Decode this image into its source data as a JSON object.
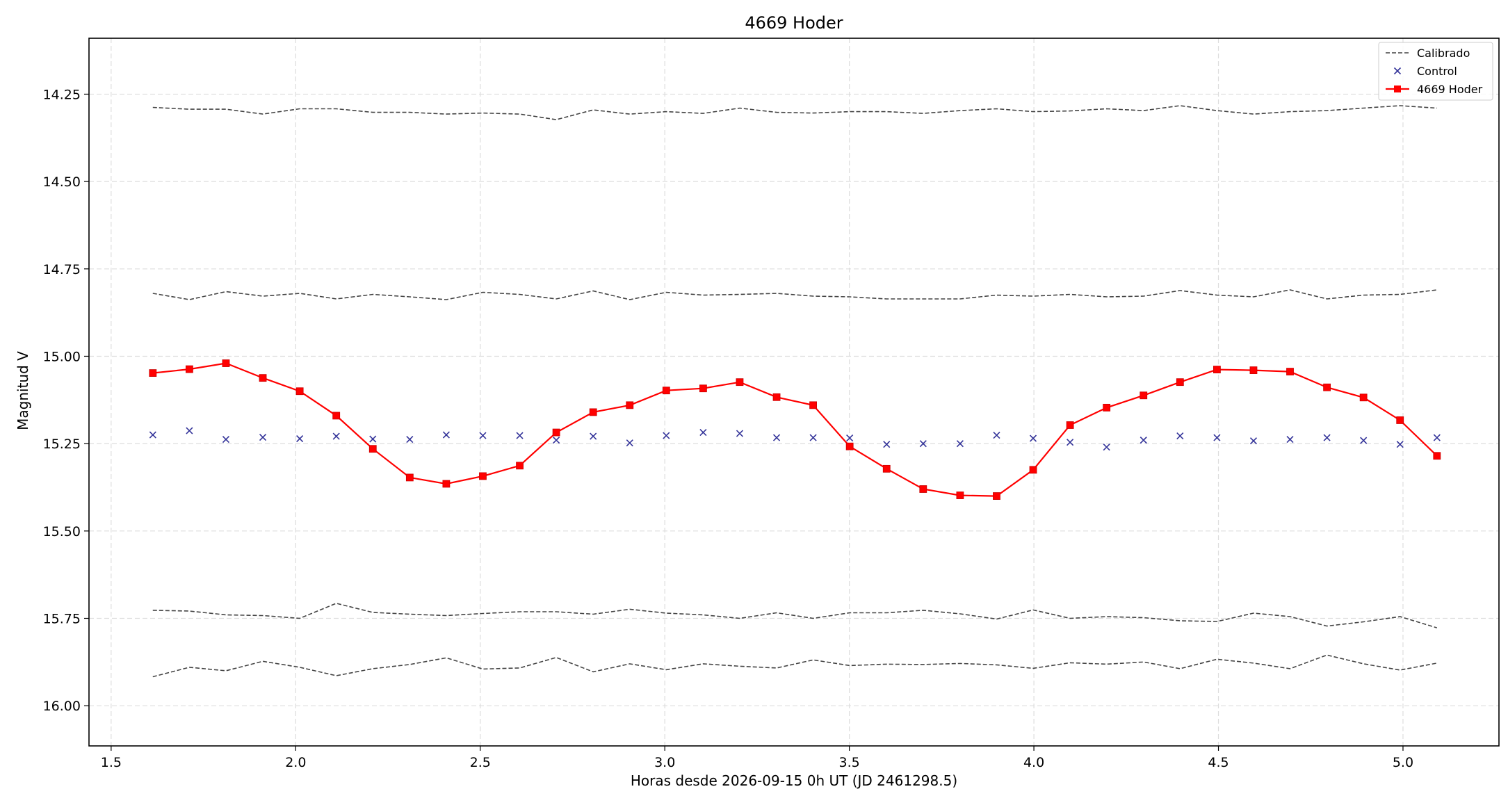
{
  "chart_data": {
    "type": "line",
    "title": "4669 Hoder",
    "xlabel": "Horas desde 2026-09-15 0h UT (JD 2461298.5)",
    "ylabel": "Magnitud V",
    "xlim": [
      1.44,
      5.26
    ],
    "ylim": [
      16.115,
      14.09
    ],
    "y_inverted": true,
    "grid": true,
    "legend_position": "top-right",
    "x_ticks": [
      1.5,
      2.0,
      2.5,
      3.0,
      3.5,
      4.0,
      4.5,
      5.0
    ],
    "x_tick_labels": [
      "1.5",
      "2.0",
      "2.5",
      "3.0",
      "3.5",
      "4.0",
      "4.5",
      "5.0"
    ],
    "y_ticks": [
      14.25,
      14.5,
      14.75,
      15.0,
      15.25,
      15.5,
      15.75,
      16.0
    ],
    "y_tick_labels": [
      "14.25",
      "14.50",
      "14.75",
      "15.00",
      "15.25",
      "15.50",
      "15.75",
      "16.00"
    ],
    "x": [
      1.613,
      1.712,
      1.811,
      1.911,
      2.011,
      2.11,
      2.209,
      2.309,
      2.408,
      2.507,
      2.607,
      2.706,
      2.806,
      2.905,
      3.004,
      3.104,
      3.203,
      3.303,
      3.402,
      3.501,
      3.601,
      3.7,
      3.8,
      3.899,
      3.998,
      4.098,
      4.197,
      4.297,
      4.396,
      4.496,
      4.595,
      4.694,
      4.794,
      4.893,
      4.992,
      5.092
    ],
    "series": [
      {
        "name": "Calibrado",
        "style": "dashed",
        "color": "#444444",
        "lines": [
          [
            14.288,
            14.293,
            14.293,
            14.307,
            14.292,
            14.292,
            14.302,
            14.302,
            14.307,
            14.304,
            14.307,
            14.323,
            14.295,
            14.307,
            14.3,
            14.305,
            14.29,
            14.302,
            14.304,
            14.3,
            14.3,
            14.305,
            14.297,
            14.292,
            14.3,
            14.298,
            14.292,
            14.297,
            14.283,
            14.297,
            14.307,
            14.3,
            14.297,
            14.29,
            14.283,
            14.29
          ],
          [
            14.82,
            14.838,
            14.815,
            14.828,
            14.82,
            14.836,
            14.823,
            14.83,
            14.838,
            14.817,
            14.823,
            14.836,
            14.813,
            14.838,
            14.817,
            14.825,
            14.823,
            14.82,
            14.828,
            14.83,
            14.836,
            14.836,
            14.836,
            14.825,
            14.828,
            14.823,
            14.83,
            14.828,
            14.812,
            14.825,
            14.83,
            14.81,
            14.836,
            14.825,
            14.823,
            14.81
          ],
          [
            15.727,
            15.729,
            15.74,
            15.742,
            15.75,
            15.707,
            15.733,
            15.738,
            15.742,
            15.736,
            15.731,
            15.731,
            15.738,
            15.724,
            15.735,
            15.74,
            15.75,
            15.734,
            15.75,
            15.734,
            15.734,
            15.727,
            15.737,
            15.752,
            15.726,
            15.75,
            15.745,
            15.748,
            15.757,
            15.759,
            15.735,
            15.745,
            15.772,
            15.76,
            15.745,
            15.777
          ],
          [
            15.917,
            15.89,
            15.9,
            15.873,
            15.89,
            15.914,
            15.894,
            15.882,
            15.863,
            15.895,
            15.892,
            15.862,
            15.903,
            15.88,
            15.897,
            15.88,
            15.887,
            15.892,
            15.869,
            15.885,
            15.881,
            15.882,
            15.879,
            15.883,
            15.893,
            15.877,
            15.881,
            15.875,
            15.894,
            15.867,
            15.878,
            15.894,
            15.855,
            15.88,
            15.898,
            15.878
          ]
        ]
      },
      {
        "name": "Control",
        "style": "markers-x",
        "color": "#333399",
        "values": [
          15.225,
          15.213,
          15.238,
          15.232,
          15.236,
          15.229,
          15.237,
          15.238,
          15.225,
          15.227,
          15.227,
          15.24,
          15.229,
          15.248,
          15.227,
          15.218,
          15.221,
          15.233,
          15.233,
          15.234,
          15.252,
          15.25,
          15.25,
          15.226,
          15.235,
          15.246,
          15.26,
          15.24,
          15.228,
          15.233,
          15.242,
          15.238,
          15.233,
          15.241,
          15.252,
          15.233
        ]
      },
      {
        "name": "4669 Hoder",
        "style": "line-square",
        "color": "#ff0000",
        "values": [
          15.048,
          15.037,
          15.02,
          15.062,
          15.1,
          15.17,
          15.265,
          15.347,
          15.365,
          15.343,
          15.313,
          15.218,
          15.16,
          15.14,
          15.098,
          15.092,
          15.074,
          15.117,
          15.14,
          15.258,
          15.322,
          15.38,
          15.398,
          15.4,
          15.325,
          15.197,
          15.147,
          15.112,
          15.074,
          15.038,
          15.04,
          15.044,
          15.089,
          15.118,
          15.183,
          15.285
        ]
      }
    ]
  }
}
